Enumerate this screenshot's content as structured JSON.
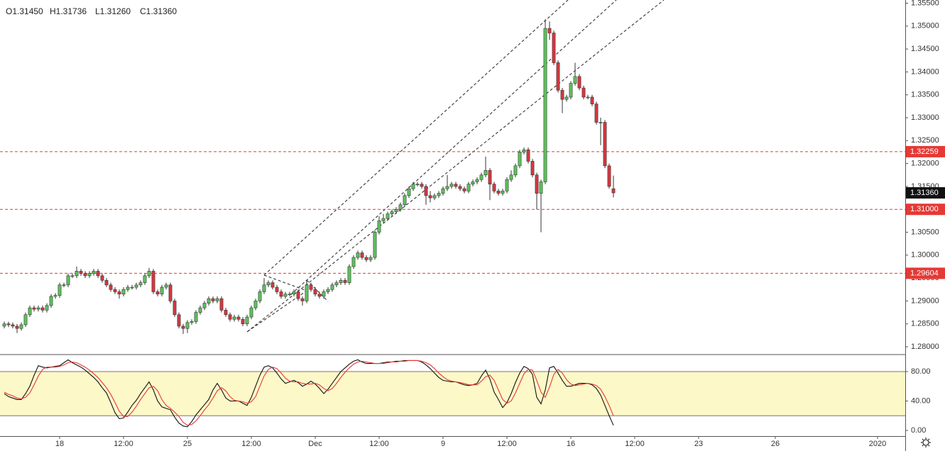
{
  "chart_data": {
    "type": "candlestick",
    "ohlc_labels": [
      "O1.31450",
      "H1.31736",
      "L1.31260",
      "C1.31360"
    ],
    "up_color": "#5cc45c",
    "down_color": "#d9363e",
    "border_color": "#333333",
    "open": [
      1.2845,
      1.285,
      1.2848,
      1.2845,
      1.284,
      1.2848,
      1.287,
      1.2885,
      1.2882,
      1.2885,
      1.288,
      1.289,
      1.291,
      1.2912,
      1.2935,
      1.2935,
      1.2955,
      1.2955,
      1.2965,
      1.296,
      1.2955,
      1.296,
      1.2965,
      1.2955,
      1.2945,
      1.2935,
      1.2925,
      1.292,
      1.2915,
      1.2925,
      1.293,
      1.293,
      1.2935,
      1.294,
      1.2955,
      1.2965,
      1.292,
      1.2915,
      1.293,
      1.2935,
      1.29,
      1.287,
      1.2845,
      1.284,
      1.2853,
      1.2855,
      1.2875,
      1.2885,
      1.2895,
      1.2905,
      1.29,
      1.2905,
      1.288,
      1.287,
      1.286,
      1.2865,
      1.286,
      1.285,
      1.2865,
      1.2885,
      1.29,
      1.292,
      1.2935,
      1.294,
      1.293,
      1.292,
      1.291,
      1.2915,
      1.2915,
      1.292,
      1.2905,
      1.29,
      1.2935,
      1.2925,
      1.2915,
      1.291,
      1.292,
      1.2925,
      1.2935,
      1.294,
      1.2945,
      1.294,
      1.2975,
      1.2995,
      1.3005,
      1.2995,
      1.299,
      1.2995,
      1.305,
      1.3075,
      1.308,
      1.309,
      1.3095,
      1.31,
      1.311,
      1.313,
      1.3145,
      1.3155,
      1.3155,
      1.315,
      1.313,
      1.3125,
      1.313,
      1.3135,
      1.3145,
      1.315,
      1.3155,
      1.315,
      1.3145,
      1.314,
      1.3155,
      1.316,
      1.3165,
      1.3175,
      1.3185,
      1.3155,
      1.314,
      1.3135,
      1.314,
      1.3165,
      1.3175,
      1.3195,
      1.3225,
      1.323,
      1.3205,
      1.3175,
      1.3135,
      1.316,
      1.3495,
      1.3485,
      1.342,
      1.336,
      1.334,
      1.3345,
      1.3375,
      1.339,
      1.3365,
      1.3345,
      1.3345,
      1.333,
      1.329,
      1.329,
      1.3195,
      1.3145
    ],
    "high": [
      1.2855,
      1.2855,
      1.2853,
      1.285,
      1.2853,
      1.2875,
      1.289,
      1.289,
      1.289,
      1.289,
      1.2895,
      1.2915,
      1.2917,
      1.294,
      1.294,
      1.296,
      1.296,
      1.2975,
      1.297,
      1.2965,
      1.2965,
      1.297,
      1.297,
      1.296,
      1.295,
      1.294,
      1.293,
      1.2925,
      1.293,
      1.2935,
      1.2935,
      1.294,
      1.2945,
      1.296,
      1.2972,
      1.297,
      1.2925,
      1.2935,
      1.294,
      1.294,
      1.2905,
      1.2875,
      1.285,
      1.2858,
      1.286,
      1.288,
      1.289,
      1.29,
      1.291,
      1.291,
      1.291,
      1.291,
      1.2885,
      1.2875,
      1.287,
      1.287,
      1.2865,
      1.287,
      1.289,
      1.2905,
      1.2925,
      1.295,
      1.2945,
      1.2945,
      1.2935,
      1.2925,
      1.292,
      1.292,
      1.2925,
      1.2925,
      1.291,
      1.2945,
      1.294,
      1.293,
      1.292,
      1.2925,
      1.293,
      1.294,
      1.2945,
      1.295,
      1.295,
      1.298,
      1.3,
      1.301,
      1.301,
      1.3,
      1.3,
      1.3055,
      1.3085,
      1.309,
      1.3095,
      1.31,
      1.3105,
      1.3115,
      1.3135,
      1.315,
      1.316,
      1.316,
      1.316,
      1.3155,
      1.314,
      1.3135,
      1.314,
      1.315,
      1.3175,
      1.316,
      1.316,
      1.3155,
      1.315,
      1.316,
      1.3165,
      1.317,
      1.318,
      1.3215,
      1.319,
      1.316,
      1.3145,
      1.3145,
      1.317,
      1.3185,
      1.32,
      1.323,
      1.3235,
      1.3235,
      1.321,
      1.318,
      1.3165,
      1.3515,
      1.351,
      1.349,
      1.3425,
      1.3365,
      1.335,
      1.338,
      1.342,
      1.3395,
      1.337,
      1.335,
      1.335,
      1.3335,
      1.33,
      1.3295,
      1.32,
      1.31736
    ],
    "low": [
      1.284,
      1.2843,
      1.284,
      1.283,
      1.2835,
      1.2843,
      1.2865,
      1.2877,
      1.2877,
      1.2875,
      1.2875,
      1.2885,
      1.2905,
      1.2907,
      1.293,
      1.293,
      1.295,
      1.295,
      1.2955,
      1.295,
      1.295,
      1.2955,
      1.295,
      1.294,
      1.293,
      1.292,
      1.2915,
      1.2905,
      1.291,
      1.292,
      1.2925,
      1.2925,
      1.293,
      1.2935,
      1.295,
      1.2915,
      1.291,
      1.291,
      1.2925,
      1.2895,
      1.2865,
      1.284,
      1.2828,
      1.283,
      1.2848,
      1.285,
      1.287,
      1.288,
      1.289,
      1.2895,
      1.2895,
      1.2875,
      1.2865,
      1.2855,
      1.2855,
      1.2855,
      1.2845,
      1.2845,
      1.286,
      1.288,
      1.2895,
      1.2915,
      1.293,
      1.2925,
      1.2915,
      1.2905,
      1.2905,
      1.291,
      1.291,
      1.29,
      1.289,
      1.2895,
      1.292,
      1.291,
      1.2905,
      1.2905,
      1.2915,
      1.292,
      1.293,
      1.2935,
      1.2935,
      1.2935,
      1.297,
      1.299,
      1.299,
      1.2985,
      1.2985,
      1.299,
      1.3045,
      1.307,
      1.3075,
      1.3085,
      1.309,
      1.3095,
      1.3105,
      1.3125,
      1.314,
      1.315,
      1.3145,
      1.311,
      1.3115,
      1.312,
      1.3125,
      1.313,
      1.314,
      1.3145,
      1.3145,
      1.314,
      1.3135,
      1.3135,
      1.315,
      1.3155,
      1.316,
      1.317,
      1.312,
      1.3135,
      1.313,
      1.313,
      1.3135,
      1.316,
      1.317,
      1.319,
      1.322,
      1.32,
      1.317,
      1.31,
      1.305,
      1.3155,
      1.347,
      1.3415,
      1.3355,
      1.331,
      1.3335,
      1.334,
      1.337,
      1.336,
      1.334,
      1.334,
      1.3325,
      1.3285,
      1.324,
      1.319,
      1.3145,
      1.3126
    ],
    "close": [
      1.285,
      1.2848,
      1.2845,
      1.284,
      1.2848,
      1.287,
      1.2885,
      1.2882,
      1.2885,
      1.288,
      1.289,
      1.291,
      1.2912,
      1.2935,
      1.2935,
      1.2955,
      1.2955,
      1.2965,
      1.296,
      1.2955,
      1.296,
      1.2965,
      1.2955,
      1.2945,
      1.2935,
      1.2925,
      1.292,
      1.2915,
      1.2925,
      1.293,
      1.293,
      1.2935,
      1.294,
      1.2955,
      1.2965,
      1.292,
      1.2915,
      1.293,
      1.2935,
      1.29,
      1.287,
      1.2845,
      1.284,
      1.2853,
      1.2855,
      1.2875,
      1.2885,
      1.2895,
      1.2905,
      1.29,
      1.2905,
      1.288,
      1.287,
      1.286,
      1.2865,
      1.286,
      1.285,
      1.2865,
      1.2885,
      1.29,
      1.292,
      1.2935,
      1.294,
      1.293,
      1.292,
      1.291,
      1.2915,
      1.2915,
      1.292,
      1.2905,
      1.29,
      1.2935,
      1.2925,
      1.2915,
      1.291,
      1.292,
      1.2925,
      1.2935,
      1.294,
      1.2945,
      1.294,
      1.2975,
      1.2995,
      1.3005,
      1.2995,
      1.299,
      1.2995,
      1.305,
      1.3075,
      1.308,
      1.309,
      1.3095,
      1.31,
      1.311,
      1.313,
      1.3145,
      1.3155,
      1.3155,
      1.315,
      1.313,
      1.3125,
      1.313,
      1.3135,
      1.3145,
      1.315,
      1.3155,
      1.315,
      1.3145,
      1.314,
      1.3155,
      1.316,
      1.3165,
      1.3175,
      1.3185,
      1.3155,
      1.314,
      1.3135,
      1.314,
      1.3165,
      1.3175,
      1.3195,
      1.3225,
      1.323,
      1.3205,
      1.3175,
      1.3135,
      1.316,
      1.3495,
      1.3485,
      1.342,
      1.336,
      1.334,
      1.3345,
      1.3375,
      1.339,
      1.3365,
      1.3345,
      1.3345,
      1.333,
      1.329,
      1.329,
      1.3195,
      1.315,
      1.3136
    ],
    "xlim": [
      -1,
      211.5
    ],
    "xticks": [
      {
        "value": 13,
        "label": "18"
      },
      {
        "value": 28,
        "label": "12:00"
      },
      {
        "value": 43,
        "label": "25"
      },
      {
        "value": 58,
        "label": "12:00"
      },
      {
        "value": 73,
        "label": "Dec"
      },
      {
        "value": 88,
        "label": "12:00"
      },
      {
        "value": 103,
        "label": "9"
      },
      {
        "value": 118,
        "label": "12:00"
      },
      {
        "value": 133,
        "label": "16"
      },
      {
        "value": 148,
        "label": "12:00"
      },
      {
        "value": 163,
        "label": "23"
      },
      {
        "value": 181,
        "label": "26"
      },
      {
        "value": 205,
        "label": "2020"
      }
    ],
    "ylim": [
      1.2783,
      1.3557
    ],
    "yticks": [
      {
        "value": 1.28,
        "label": "1.28000"
      },
      {
        "value": 1.285,
        "label": "1.28500"
      },
      {
        "value": 1.29,
        "label": "1.29000"
      },
      {
        "value": 1.295,
        "label": "1.29500"
      },
      {
        "value": 1.3,
        "label": "1.30000"
      },
      {
        "value": 1.305,
        "label": "1.30500"
      },
      {
        "value": 1.31,
        "label": "1.31000"
      },
      {
        "value": 1.315,
        "label": "1.31500"
      },
      {
        "value": 1.32,
        "label": "1.32000"
      },
      {
        "value": 1.325,
        "label": "1.32500"
      },
      {
        "value": 1.33,
        "label": "1.33000"
      },
      {
        "value": 1.335,
        "label": "1.33500"
      },
      {
        "value": 1.34,
        "label": "1.34000"
      },
      {
        "value": 1.345,
        "label": "1.34500"
      },
      {
        "value": 1.35,
        "label": "1.35000"
      },
      {
        "value": 1.355,
        "label": "1.35500"
      }
    ],
    "hlines": [
      {
        "value": 1.32259,
        "label": "1.32259"
      },
      {
        "value": 1.31,
        "label": "1.31000"
      },
      {
        "value": 1.29604,
        "label": "1.29604"
      }
    ],
    "hline_color": "#e53935",
    "last_price": {
      "value": 1.3136,
      "label": "1.31360"
    },
    "oscillator": {
      "type": "line",
      "ylim": [
        -7.7,
        103.1
      ],
      "yticks": [
        {
          "value": 0,
          "label": "0.00"
        },
        {
          "value": 40,
          "label": "40.00"
        },
        {
          "value": 80,
          "label": "80.00"
        }
      ],
      "band": [
        20,
        80
      ],
      "band_color": "#fdf8c8",
      "series": [
        {
          "color": "#111111",
          "values": [
            50,
            46,
            44,
            42,
            42,
            50,
            60,
            75,
            88,
            86,
            85,
            86,
            87,
            88,
            92,
            96,
            92,
            89,
            86,
            82,
            77,
            72,
            66,
            58,
            51,
            38,
            24,
            16,
            17,
            25,
            34,
            41,
            50,
            58,
            66,
            55,
            40,
            32,
            30,
            28,
            18,
            10,
            6,
            5,
            12,
            21,
            28,
            35,
            42,
            55,
            64,
            55,
            44,
            40,
            40,
            40,
            37,
            34,
            45,
            60,
            75,
            86,
            88,
            85,
            78,
            70,
            64,
            66,
            68,
            65,
            60,
            63,
            67,
            63,
            57,
            50,
            56,
            64,
            72,
            80,
            85,
            90,
            94,
            96,
            93,
            91,
            91,
            91,
            91,
            92,
            93,
            93,
            94,
            94,
            95,
            95,
            95,
            95,
            93,
            89,
            84,
            78,
            72,
            68,
            67,
            66,
            66,
            64,
            62,
            61,
            62,
            64,
            74,
            82,
            70,
            52,
            42,
            31,
            38,
            50,
            65,
            78,
            87,
            84,
            76,
            45,
            36,
            55,
            85,
            87,
            78,
            68,
            60,
            60,
            62,
            64,
            64,
            64,
            62,
            57,
            48,
            34,
            20,
            7
          ]
        },
        {
          "color": "#e53935",
          "values": [
            52,
            49,
            47,
            44,
            43,
            45,
            51,
            62,
            74,
            83,
            86,
            86,
            86,
            87,
            89,
            92,
            93,
            92,
            89,
            86,
            82,
            77,
            72,
            65,
            58,
            49,
            38,
            26,
            19,
            19,
            25,
            33,
            42,
            50,
            58,
            60,
            54,
            42,
            34,
            30,
            25,
            19,
            11,
            7,
            8,
            13,
            20,
            28,
            35,
            44,
            54,
            58,
            54,
            46,
            41,
            40,
            39,
            37,
            39,
            46,
            60,
            74,
            83,
            86,
            84,
            78,
            71,
            67,
            66,
            66,
            64,
            63,
            63,
            64,
            62,
            57,
            54,
            57,
            64,
            72,
            79,
            85,
            90,
            93,
            94,
            93,
            92,
            91,
            91,
            91,
            92,
            93,
            93,
            94,
            94,
            95,
            95,
            95,
            94,
            92,
            89,
            84,
            78,
            73,
            69,
            67,
            66,
            65,
            64,
            62,
            62,
            62,
            67,
            73,
            75,
            68,
            55,
            42,
            37,
            40,
            51,
            64,
            77,
            83,
            82,
            68,
            52,
            45,
            59,
            76,
            83,
            78,
            69,
            63,
            61,
            62,
            63,
            64,
            63,
            61,
            56,
            46,
            34,
            20
          ]
        }
      ]
    }
  }
}
